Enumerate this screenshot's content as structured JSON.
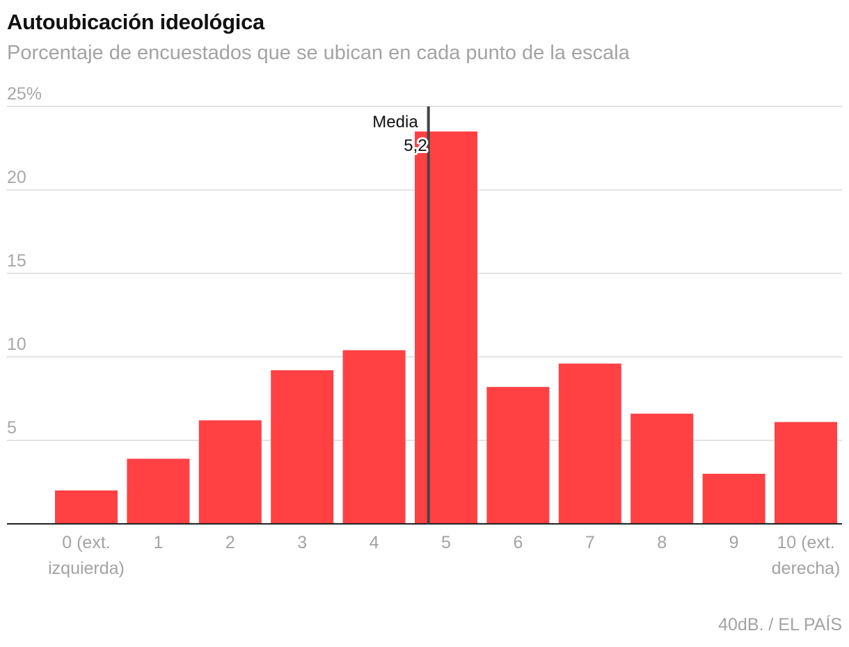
{
  "chart_data": {
    "type": "bar",
    "title": "Autoubicación ideológica",
    "subtitle": "Porcentaje de encuestados que se ubican en cada punto de la escala",
    "categories": [
      [
        "0 (ext.",
        "izquierda)"
      ],
      [
        "1"
      ],
      [
        "2"
      ],
      [
        "3"
      ],
      [
        "4"
      ],
      [
        "5"
      ],
      [
        "6"
      ],
      [
        "7"
      ],
      [
        "8"
      ],
      [
        "9"
      ],
      [
        "10 (ext.",
        "derecha)"
      ]
    ],
    "values": [
      2.0,
      3.9,
      6.2,
      9.2,
      10.4,
      23.5,
      8.2,
      9.6,
      6.6,
      3.0,
      6.1
    ],
    "ylim": [
      0,
      25
    ],
    "yticks": [
      0,
      5,
      10,
      15,
      20,
      25
    ],
    "ytick_labels": [
      "",
      "5",
      "10",
      "15",
      "20",
      "25%"
    ],
    "mean": {
      "label": "Media",
      "value_label": "5,2",
      "value": 5.2
    },
    "bar_color": "#ff4144",
    "source": "40dB. / EL PAÍS"
  }
}
